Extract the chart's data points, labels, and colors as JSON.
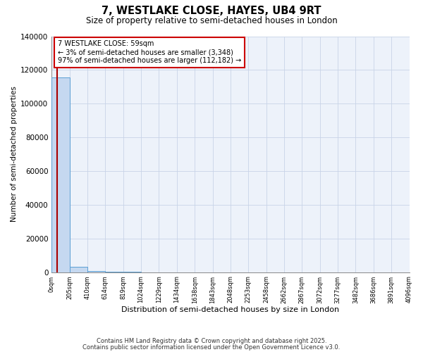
{
  "title": "7, WESTLAKE CLOSE, HAYES, UB4 9RT",
  "subtitle": "Size of property relative to semi-detached houses in London",
  "xlabel": "Distribution of semi-detached houses by size in London",
  "ylabel": "Number of semi-detached properties",
  "bin_edges": [
    0,
    205,
    410,
    614,
    819,
    1024,
    1229,
    1434,
    1638,
    1843,
    2048,
    2253,
    2458,
    2662,
    2867,
    3072,
    3277,
    3482,
    3686,
    3891,
    4096
  ],
  "bar_heights": [
    115530,
    3348,
    800,
    200,
    80,
    40,
    25,
    15,
    10,
    7,
    5,
    4,
    3,
    2,
    2,
    1,
    1,
    1,
    1,
    1
  ],
  "bar_color": "#c5d8f0",
  "bar_edge_color": "#5a9fd4",
  "property_size": 59,
  "property_label": "7 WESTLAKE CLOSE: 59sqm",
  "smaller_pct": "3%",
  "smaller_count": "3,348",
  "larger_pct": "97%",
  "larger_count": "112,182",
  "red_line_color": "#aa0000",
  "annotation_box_edge": "#cc0000",
  "ylim": [
    0,
    140000
  ],
  "yticks": [
    0,
    20000,
    40000,
    60000,
    80000,
    100000,
    120000,
    140000
  ],
  "grid_color": "#c8d4e8",
  "bg_color": "#edf2fa",
  "footer_line1": "Contains HM Land Registry data © Crown copyright and database right 2025.",
  "footer_line2": "Contains public sector information licensed under the Open Government Licence v3.0."
}
